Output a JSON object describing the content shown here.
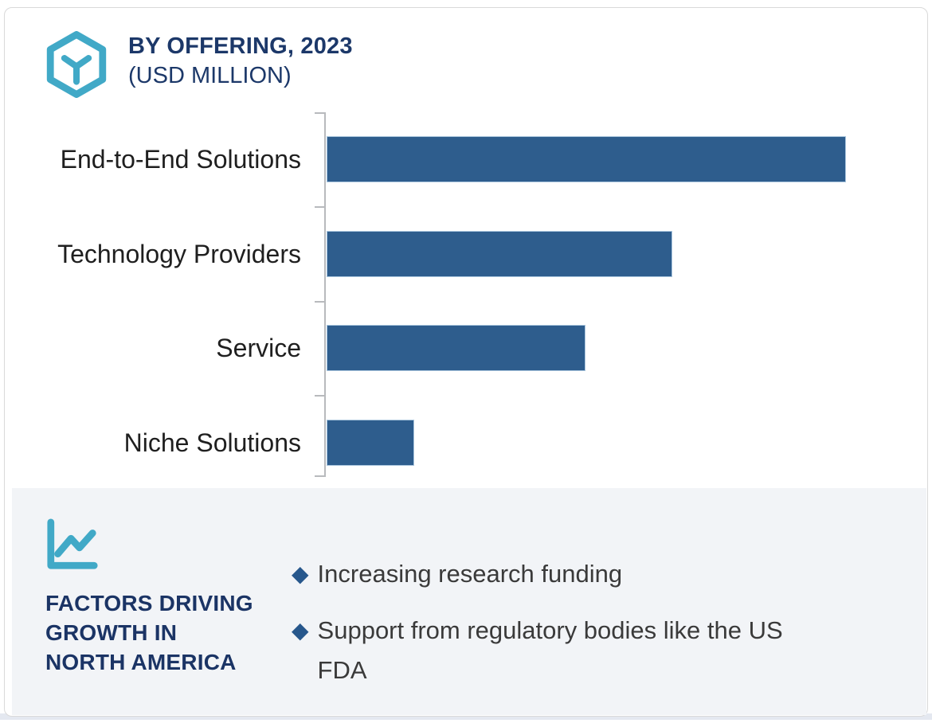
{
  "header": {
    "icon": "hexagon-y-logo-icon",
    "title_line1": "BY OFFERING, 2023",
    "title_line2": "(USD MILLION)"
  },
  "chart_data": {
    "type": "bar",
    "orientation": "horizontal",
    "title": "BY OFFERING, 2023 (USD MILLION)",
    "unit": "USD Million",
    "categories": [
      "End-to-End Solutions",
      "Technology Providers",
      "Service",
      "Niche Solutions"
    ],
    "values_pct_of_max": [
      100,
      66.6,
      49.9,
      16.8
    ],
    "value_axis_labels_visible": false,
    "data_labels_visible": false,
    "grid": false,
    "legend": false,
    "bar_color": "#2e5d8d"
  },
  "factors": {
    "icon": "trend-line-chart-icon",
    "heading_lines": [
      "FACTORS DRIVING",
      "GROWTH IN",
      "NORTH AMERICA"
    ],
    "bullets": [
      "Increasing research funding",
      "Support from regulatory bodies like the US FDA"
    ]
  },
  "colors": {
    "accent_teal": "#41a9c7",
    "navy": "#1c3869",
    "bar_blue": "#2e5d8d",
    "diamond_blue": "#27578c",
    "panel_background": "#f2f4f7",
    "body_text": "#3a3a3a"
  }
}
